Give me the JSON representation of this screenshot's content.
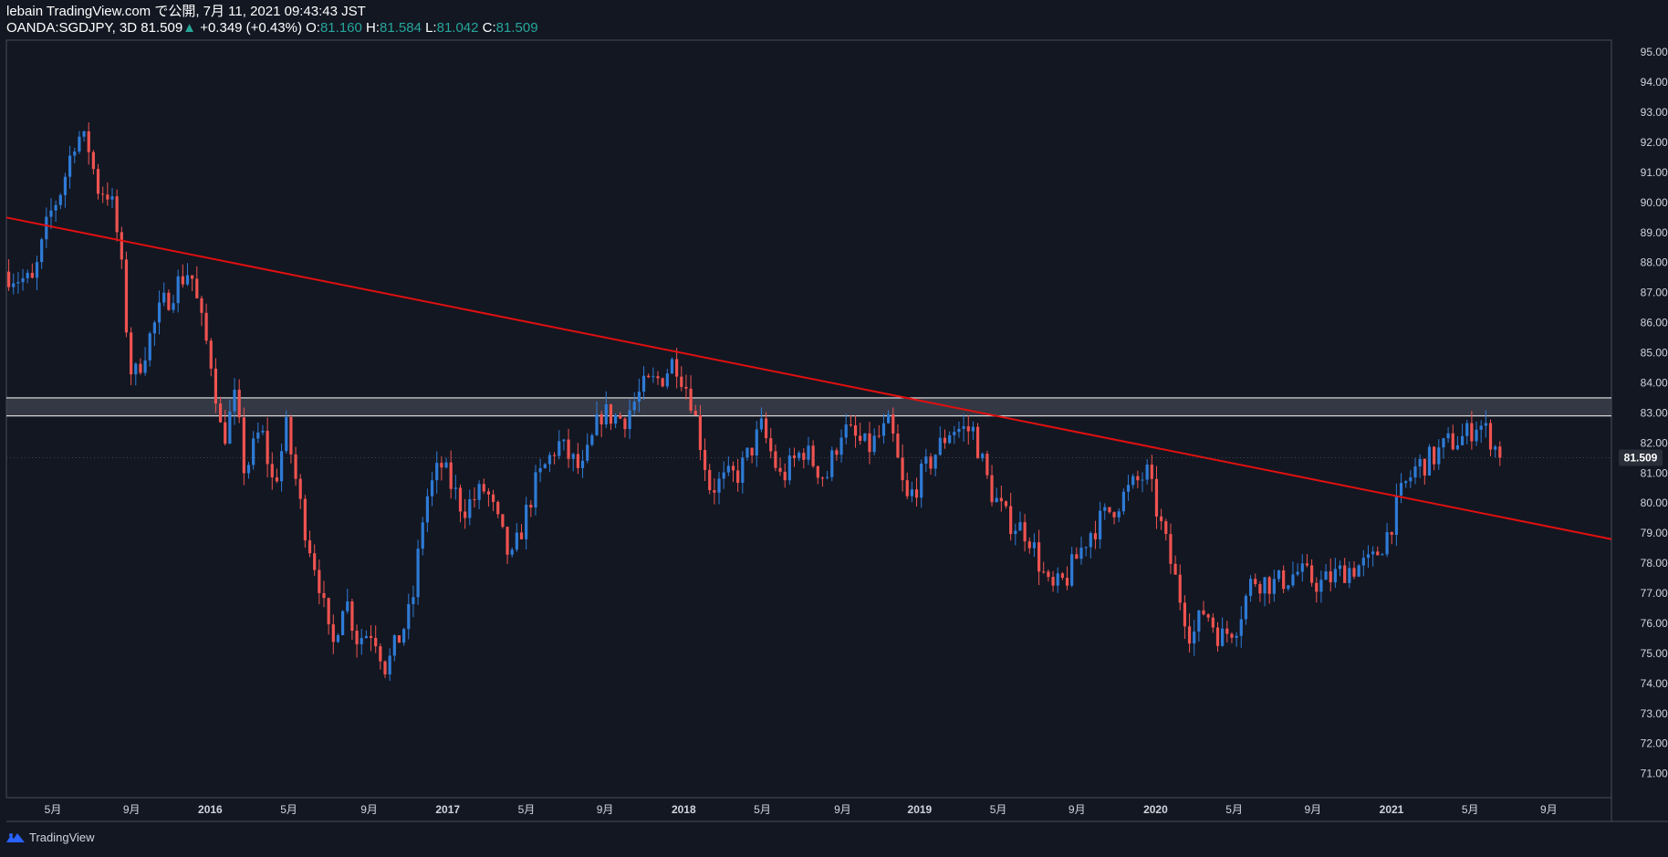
{
  "header": {
    "published": "lebain TradingView.com で公開, 7月 11, 2021 09:43:43 JST",
    "symbol": "OANDA:SGDJPY, 3D",
    "last": "81.509",
    "arrow": "▲",
    "change": "+0.349 (+0.43%)",
    "o_label": "O:",
    "o_val": "81.160",
    "h_label": "H:",
    "h_val": "81.584",
    "l_label": "L:",
    "l_val": "81.042",
    "c_label": "C:",
    "c_val": "81.509"
  },
  "footer": {
    "brand": "TradingView",
    "logo_icon": "tradingview-logo-icon"
  },
  "colors": {
    "background": "#131722",
    "up": "#2e7bd6",
    "down": "#ef5350",
    "trendline": "#e01010",
    "zone_fill": "#404450",
    "zone_border": "#e8e8e8",
    "axis_text": "#d1d4dc",
    "price_label_bg": "#2a2e39"
  },
  "chart_data": {
    "type": "candlestick",
    "symbol": "OANDA:SGDJPY",
    "interval": "3D",
    "ylim": [
      70.2,
      95.4
    ],
    "y_ticks": [
      "71.000",
      "72.000",
      "73.000",
      "74.000",
      "75.000",
      "76.000",
      "77.000",
      "78.000",
      "79.000",
      "80.000",
      "81.000",
      "82.000",
      "83.000",
      "84.000",
      "85.000",
      "86.000",
      "87.000",
      "88.000",
      "89.000",
      "90.000",
      "91.000",
      "92.000",
      "93.000",
      "94.000",
      "95.000"
    ],
    "last_price_label": "81.509",
    "last_price": 81.509,
    "x_ticks": [
      {
        "label": "5月",
        "t": 0.029
      },
      {
        "label": "9月",
        "t": 0.078
      },
      {
        "label": "2016",
        "t": 0.127
      },
      {
        "label": "5月",
        "t": 0.176
      },
      {
        "label": "9月",
        "t": 0.226
      },
      {
        "label": "2017",
        "t": 0.275
      },
      {
        "label": "5月",
        "t": 0.324
      },
      {
        "label": "9月",
        "t": 0.373
      },
      {
        "label": "2018",
        "t": 0.422
      },
      {
        "label": "5月",
        "t": 0.471
      },
      {
        "label": "9月",
        "t": 0.521
      },
      {
        "label": "2019",
        "t": 0.569
      },
      {
        "label": "5月",
        "t": 0.618
      },
      {
        "label": "9月",
        "t": 0.667
      },
      {
        "label": "2020",
        "t": 0.716
      },
      {
        "label": "5月",
        "t": 0.765
      },
      {
        "label": "9月",
        "t": 0.814
      },
      {
        "label": "2021",
        "t": 0.863
      },
      {
        "label": "5月",
        "t": 0.912
      },
      {
        "label": "9月",
        "t": 0.961
      }
    ],
    "price_path": [
      [
        0.0,
        87.7
      ],
      [
        0.018,
        87.3
      ],
      [
        0.028,
        89.5
      ],
      [
        0.036,
        90.5
      ],
      [
        0.045,
        92.3
      ],
      [
        0.053,
        91.8
      ],
      [
        0.058,
        90.5
      ],
      [
        0.066,
        90.3
      ],
      [
        0.072,
        88.5
      ],
      [
        0.076,
        86.0
      ],
      [
        0.08,
        84.0
      ],
      [
        0.087,
        85.0
      ],
      [
        0.098,
        86.5
      ],
      [
        0.108,
        87.3
      ],
      [
        0.116,
        87.8
      ],
      [
        0.122,
        86.2
      ],
      [
        0.13,
        84.5
      ],
      [
        0.136,
        82.0
      ],
      [
        0.144,
        83.5
      ],
      [
        0.15,
        81.0
      ],
      [
        0.16,
        82.5
      ],
      [
        0.168,
        80.5
      ],
      [
        0.176,
        82.5
      ],
      [
        0.186,
        79.5
      ],
      [
        0.196,
        77.5
      ],
      [
        0.204,
        75.0
      ],
      [
        0.212,
        77.0
      ],
      [
        0.22,
        75.5
      ],
      [
        0.23,
        75.8
      ],
      [
        0.238,
        74.5
      ],
      [
        0.246,
        75.5
      ],
      [
        0.254,
        76.5
      ],
      [
        0.262,
        80.0
      ],
      [
        0.272,
        81.3
      ],
      [
        0.286,
        79.8
      ],
      [
        0.3,
        80.5
      ],
      [
        0.316,
        78.0
      ],
      [
        0.33,
        80.5
      ],
      [
        0.345,
        82.0
      ],
      [
        0.36,
        81.0
      ],
      [
        0.372,
        83.0
      ],
      [
        0.386,
        82.8
      ],
      [
        0.398,
        83.8
      ],
      [
        0.41,
        84.2
      ],
      [
        0.418,
        84.8
      ],
      [
        0.428,
        83.5
      ],
      [
        0.44,
        80.5
      ],
      [
        0.458,
        81.0
      ],
      [
        0.472,
        82.5
      ],
      [
        0.484,
        80.8
      ],
      [
        0.498,
        81.8
      ],
      [
        0.512,
        80.8
      ],
      [
        0.522,
        82.5
      ],
      [
        0.538,
        81.8
      ],
      [
        0.552,
        82.6
      ],
      [
        0.562,
        80.0
      ],
      [
        0.576,
        81.3
      ],
      [
        0.59,
        82.5
      ],
      [
        0.604,
        82.4
      ],
      [
        0.614,
        80.5
      ],
      [
        0.624,
        79.5
      ],
      [
        0.638,
        79.0
      ],
      [
        0.652,
        77.0
      ],
      [
        0.662,
        77.5
      ],
      [
        0.676,
        79.0
      ],
      [
        0.69,
        79.8
      ],
      [
        0.702,
        80.5
      ],
      [
        0.712,
        81.0
      ],
      [
        0.722,
        79.0
      ],
      [
        0.732,
        77.0
      ],
      [
        0.74,
        75.5
      ],
      [
        0.748,
        76.5
      ],
      [
        0.758,
        75.5
      ],
      [
        0.768,
        76.0
      ],
      [
        0.778,
        77.5
      ],
      [
        0.792,
        77.3
      ],
      [
        0.806,
        77.7
      ],
      [
        0.82,
        77.3
      ],
      [
        0.836,
        77.8
      ],
      [
        0.852,
        78.0
      ],
      [
        0.862,
        79.0
      ],
      [
        0.872,
        80.5
      ],
      [
        0.88,
        81.2
      ],
      [
        0.89,
        81.5
      ],
      [
        0.9,
        82.0
      ],
      [
        0.91,
        82.2
      ],
      [
        0.918,
        82.7
      ],
      [
        0.926,
        82.2
      ],
      [
        0.932,
        81.509
      ]
    ],
    "trendline": {
      "from": [
        0.0,
        89.5
      ],
      "to": [
        1.0,
        78.8
      ],
      "color": "#e01010"
    },
    "zone": {
      "upper": 83.5,
      "lower": 82.9,
      "start": 0.0,
      "end": 1.0
    }
  }
}
